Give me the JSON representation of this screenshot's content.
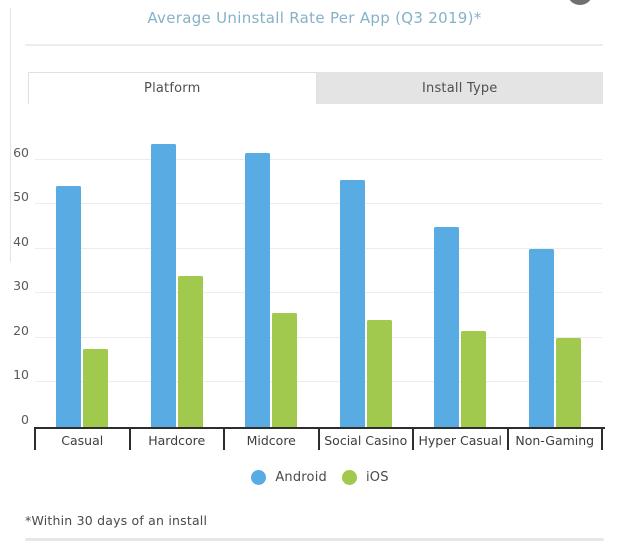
{
  "header": {
    "title": "Average Uninstall Rate Per App (Q3 2019)*"
  },
  "tabs": {
    "platform": "Platform",
    "install_type": "Install Type",
    "active_tab": "Platform"
  },
  "legend": {
    "items": [
      {
        "label": "Android",
        "color": "#58ace3"
      },
      {
        "label": "iOS",
        "color": "#a1c94e"
      }
    ]
  },
  "footnote": "*Within 30 days of an install",
  "colors": {
    "android": "#58ace3",
    "ios": "#a1c94e",
    "title_text": "#85b2c9",
    "axis": "#2d2d2d",
    "gridline": "#ececec",
    "tab_inactive_bg": "#e4e4e4"
  },
  "chart_data": {
    "type": "bar",
    "title": "Average Uninstall Rate Per App (Q3 2019)*",
    "categories": [
      "Casual",
      "Hardcore",
      "Midcore",
      "Social Casino",
      "Hyper Casual",
      "Non-Gaming"
    ],
    "series": [
      {
        "name": "Android",
        "color": "#58ace3",
        "values": [
          54,
          63.5,
          61.5,
          55.5,
          45,
          40
        ]
      },
      {
        "name": "iOS",
        "color": "#a1c94e",
        "values": [
          17.5,
          34,
          25.5,
          24,
          21.5,
          20
        ]
      }
    ],
    "xlabel": "",
    "ylabel": "",
    "yticks": [
      0,
      10,
      20,
      30,
      40,
      50,
      60
    ],
    "ylim": [
      0,
      66
    ],
    "grid": true,
    "legend_position": "bottom"
  }
}
